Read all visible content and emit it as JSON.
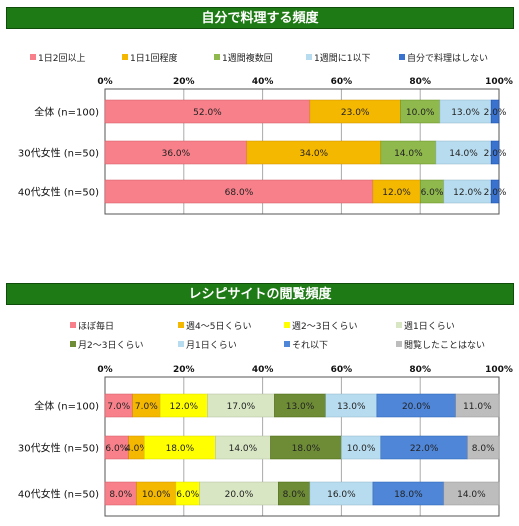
{
  "chart_data": [
    {
      "type": "bar",
      "stacked": true,
      "orientation": "horizontal",
      "title": "自分で料理する頻度",
      "categories": [
        "全体 (n=100)",
        "30代女性 (n=50)",
        "40代女性 (n=50)"
      ],
      "xlim": [
        0,
        100
      ],
      "xticks": [
        "0%",
        "20%",
        "40%",
        "60%",
        "80%",
        "100%"
      ],
      "series": [
        {
          "name": "1日2回以上",
          "color": "#f7808a",
          "values": [
            52.0,
            36.0,
            68.0
          ]
        },
        {
          "name": "1日1回程度",
          "color": "#f5b800",
          "values": [
            23.0,
            34.0,
            12.0
          ]
        },
        {
          "name": "1週間複数回",
          "color": "#8fb84d",
          "values": [
            10.0,
            14.0,
            6.0
          ]
        },
        {
          "name": "1週間に1以下",
          "color": "#b8dcef",
          "values": [
            13.0,
            14.0,
            12.0
          ]
        },
        {
          "name": "自分で料理はしない",
          "color": "#3a72d0",
          "values": [
            2.0,
            2.0,
            2.0
          ]
        }
      ],
      "value_labels": [
        [
          "52.0%",
          "23.0%",
          "10.0%",
          "13.0%",
          "2.0%"
        ],
        [
          "36.0%",
          "34.0%",
          "14.0%",
          "14.0%",
          "2.0%"
        ],
        [
          "68.0%",
          "12.0%",
          "6.0%",
          "12.0%",
          "2.0%"
        ]
      ]
    },
    {
      "type": "bar",
      "stacked": true,
      "orientation": "horizontal",
      "title": "レシピサイトの閲覧頻度",
      "categories": [
        "全体 (n=100)",
        "30代女性 (n=50)",
        "40代女性 (n=50)"
      ],
      "xlim": [
        0,
        100
      ],
      "xticks": [
        "0%",
        "20%",
        "40%",
        "60%",
        "80%",
        "100%"
      ],
      "series": [
        {
          "name": "ほぼ毎日",
          "color": "#f7808a",
          "values": [
            7.0,
            6.0,
            8.0
          ]
        },
        {
          "name": "週4～5日くらい",
          "color": "#f5b800",
          "values": [
            7.0,
            4.0,
            10.0
          ]
        },
        {
          "name": "週2～3日くらい",
          "color": "#ffff00",
          "values": [
            12.0,
            18.0,
            6.0
          ]
        },
        {
          "name": "週1日くらい",
          "color": "#d8e6c4",
          "values": [
            17.0,
            14.0,
            20.0
          ]
        },
        {
          "name": "月2～3日くらい",
          "color": "#6e8c36",
          "values": [
            13.0,
            18.0,
            8.0
          ]
        },
        {
          "name": "月1日くらい",
          "color": "#b8dcef",
          "values": [
            13.0,
            10.0,
            16.0
          ]
        },
        {
          "name": "それ以下",
          "color": "#4f86d8",
          "values": [
            20.0,
            22.0,
            18.0
          ]
        },
        {
          "name": "閲覧したことはない",
          "color": "#bdbdbd",
          "values": [
            11.0,
            8.0,
            14.0
          ]
        }
      ],
      "value_labels": [
        [
          "7.0%",
          "7.0%",
          "12.0%",
          "17.0%",
          "13.0%",
          "13.0%",
          "20.0%",
          "11.0%"
        ],
        [
          "6.0%",
          "4.0%",
          "18.0%",
          "14.0%",
          "18.0%",
          "10.0%",
          "22.0%",
          "8.0%"
        ],
        [
          "8.0%",
          "10.0%",
          "6.0%",
          "20.0%",
          "8.0%",
          "16.0%",
          "18.0%",
          "14.0%"
        ]
      ]
    }
  ]
}
